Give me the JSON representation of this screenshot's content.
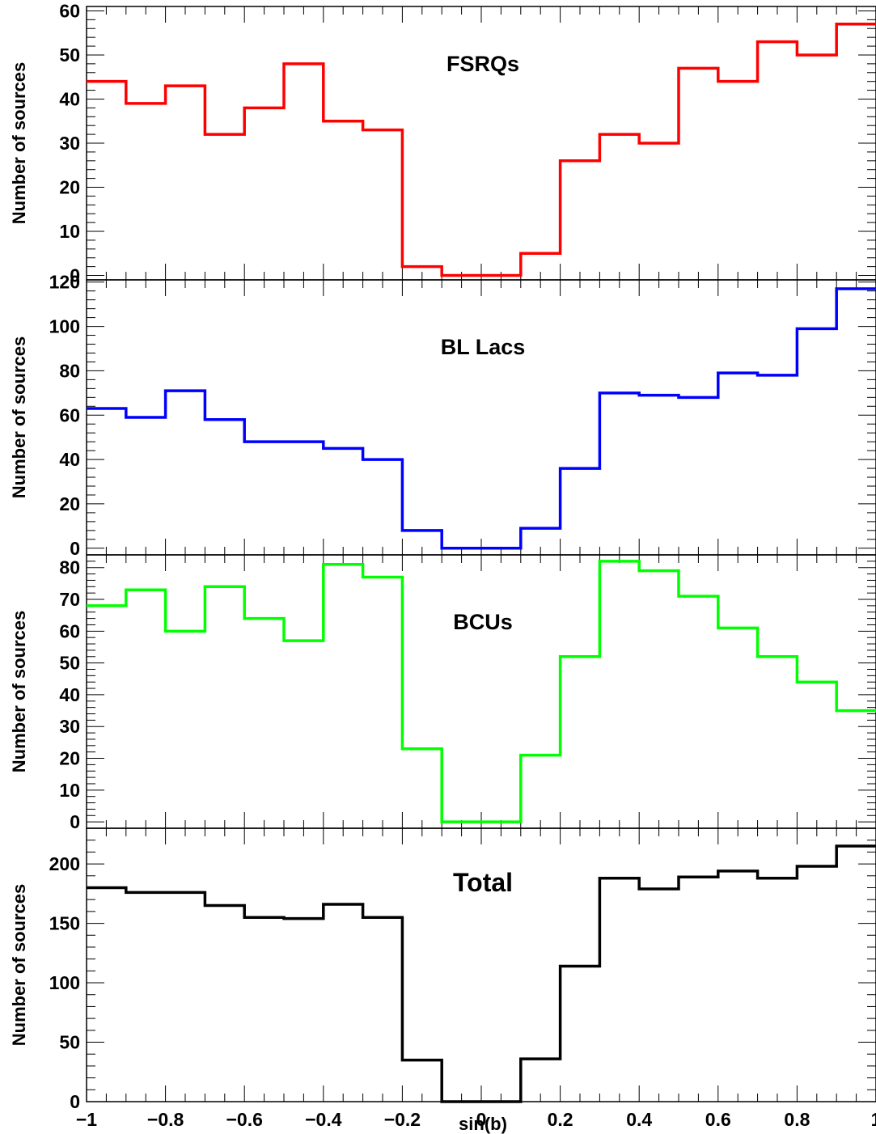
{
  "chart_data": [
    {
      "type": "histogram",
      "title": "FSRQs",
      "ylabel": "Number of sources",
      "xlim": [
        -1,
        1
      ],
      "ylim": [
        -1,
        61
      ],
      "y_ticks": [
        "0",
        "10",
        "20",
        "30",
        "40",
        "50",
        "60"
      ],
      "bin_edges": [
        -1,
        -0.9,
        -0.8,
        -0.7,
        -0.6,
        -0.5,
        -0.4,
        -0.3,
        -0.2,
        -0.1,
        0,
        0.1,
        0.2,
        0.3,
        0.4,
        0.5,
        0.6,
        0.7,
        0.8,
        0.9,
        1
      ],
      "values": [
        44,
        39,
        43,
        32,
        38,
        48,
        35,
        33,
        2,
        0,
        0,
        5,
        26,
        32,
        30,
        47,
        44,
        53,
        50,
        57
      ],
      "color": "#ff0000"
    },
    {
      "type": "histogram",
      "title": "BL Lacs",
      "ylabel": "Number of sources",
      "xlim": [
        -1,
        1
      ],
      "ylim": [
        -3,
        121
      ],
      "y_ticks": [
        "0",
        "20",
        "40",
        "60",
        "80",
        "100",
        "120"
      ],
      "bin_edges": [
        -1,
        -0.9,
        -0.8,
        -0.7,
        -0.6,
        -0.5,
        -0.4,
        -0.3,
        -0.2,
        -0.1,
        0,
        0.1,
        0.2,
        0.3,
        0.4,
        0.5,
        0.6,
        0.7,
        0.8,
        0.9,
        1
      ],
      "values": [
        63,
        59,
        71,
        58,
        48,
        48,
        45,
        40,
        8,
        0,
        0,
        9,
        36,
        70,
        69,
        68,
        79,
        78,
        99,
        117
      ],
      "color": "#0000ff"
    },
    {
      "type": "histogram",
      "title": "BCUs",
      "ylabel": "Number of sources",
      "xlim": [
        -1,
        1
      ],
      "ylim": [
        -2,
        84
      ],
      "y_ticks": [
        "0",
        "10",
        "20",
        "30",
        "40",
        "50",
        "60",
        "70",
        "80"
      ],
      "bin_edges": [
        -1,
        -0.9,
        -0.8,
        -0.7,
        -0.6,
        -0.5,
        -0.4,
        -0.3,
        -0.2,
        -0.1,
        0,
        0.1,
        0.2,
        0.3,
        0.4,
        0.5,
        0.6,
        0.7,
        0.8,
        0.9,
        1
      ],
      "values": [
        68,
        73,
        60,
        74,
        64,
        57,
        81,
        77,
        23,
        0,
        0,
        21,
        52,
        82,
        79,
        71,
        61,
        52,
        44,
        35
      ],
      "color": "#00ff00"
    },
    {
      "type": "histogram",
      "title": "Total",
      "ylabel": "Number of sources",
      "xlabel": "sin(b)",
      "xlim": [
        -1,
        1
      ],
      "ylim": [
        0,
        230
      ],
      "y_ticks": [
        "0",
        "50",
        "100",
        "150",
        "200"
      ],
      "x_ticks": [
        "−1",
        "−0.8",
        "−0.6",
        "−0.4",
        "−0.2",
        "0",
        "0.2",
        "0.4",
        "0.6",
        "0.8",
        "1"
      ],
      "bin_edges": [
        -1,
        -0.9,
        -0.8,
        -0.7,
        -0.6,
        -0.5,
        -0.4,
        -0.3,
        -0.2,
        -0.1,
        0,
        0.1,
        0.2,
        0.3,
        0.4,
        0.5,
        0.6,
        0.7,
        0.8,
        0.9,
        1
      ],
      "values": [
        180,
        176,
        176,
        165,
        155,
        154,
        166,
        155,
        35,
        0,
        0,
        36,
        114,
        188,
        179,
        189,
        194,
        188,
        198,
        215
      ],
      "color": "#000000"
    }
  ]
}
